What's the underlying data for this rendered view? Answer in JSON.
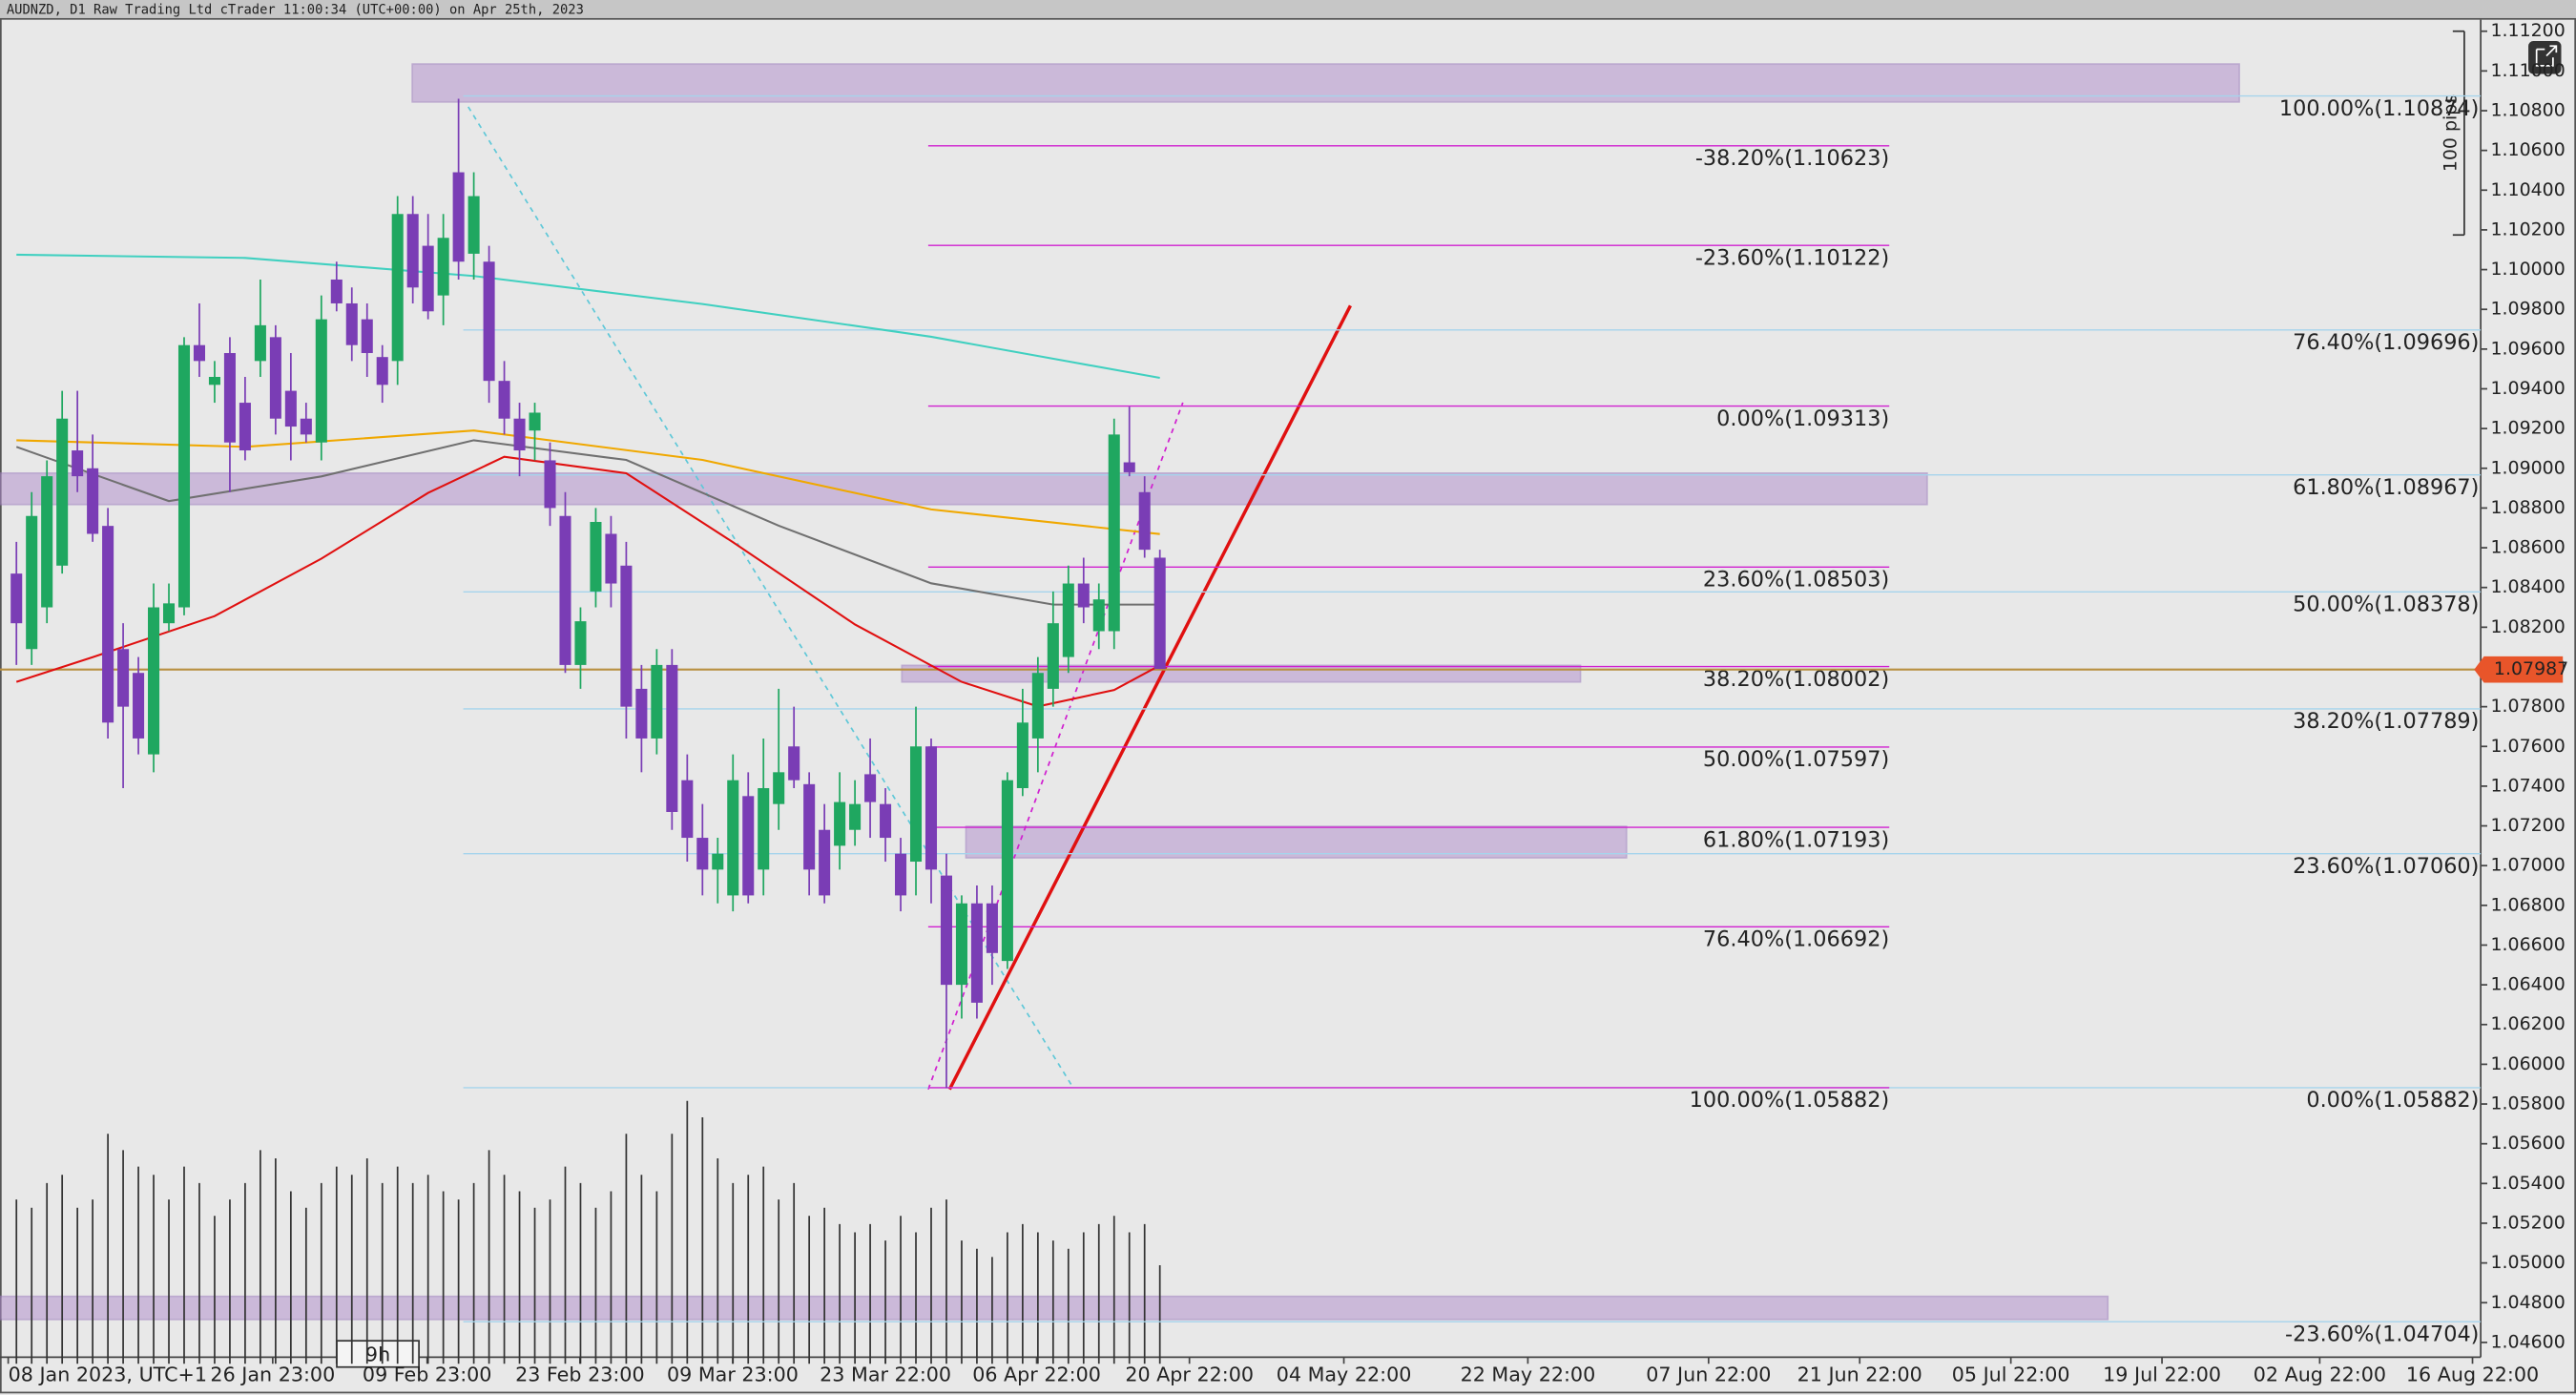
{
  "header": "AUDNZD, D1 Raw Trading Ltd cTrader 11:00:34 (UTC+00:00) on Apr 25th, 2023",
  "chart_data": {
    "type": "candlestick",
    "pips_label": "100 pips",
    "timer_label": "9h",
    "current_price": {
      "value": 1.07987,
      "label": "1.07987"
    },
    "x_labels": [
      "08 Jan 2023, UTC+1",
      "26 Jan 23:00",
      "09 Feb 23:00",
      "23 Feb 23:00",
      "09 Mar 23:00",
      "23 Mar 22:00",
      "06 Apr 22:00",
      "20 Apr 22:00",
      "04 May 22:00",
      "22 May 22:00",
      "07 Jun 22:00",
      "21 Jun 22:00",
      "05 Jul 22:00",
      "19 Jul 22:00",
      "02 Aug 22:00",
      "16 Aug 22:00"
    ],
    "ylim": [
      1.046,
      1.112
    ],
    "yticks": [
      {
        "value": 1.112,
        "label": "1.11200"
      },
      {
        "value": 1.11,
        "label": "1.11000"
      },
      {
        "value": 1.108,
        "label": "1.10800"
      },
      {
        "value": 1.106,
        "label": "1.10600"
      },
      {
        "value": 1.104,
        "label": "1.10400"
      },
      {
        "value": 1.102,
        "label": "1.10200"
      },
      {
        "value": 1.1,
        "label": "1.10000"
      },
      {
        "value": 1.098,
        "label": "1.09800"
      },
      {
        "value": 1.096,
        "label": "1.09600"
      },
      {
        "value": 1.094,
        "label": "1.09400"
      },
      {
        "value": 1.092,
        "label": "1.09200"
      },
      {
        "value": 1.09,
        "label": "1.09000"
      },
      {
        "value": 1.088,
        "label": "1.08800"
      },
      {
        "value": 1.086,
        "label": "1.08600"
      },
      {
        "value": 1.084,
        "label": "1.08400"
      },
      {
        "value": 1.082,
        "label": "1.08200"
      },
      {
        "value": 1.08,
        "label": "1.08000"
      },
      {
        "value": 1.078,
        "label": "1.07800"
      },
      {
        "value": 1.076,
        "label": "1.07600"
      },
      {
        "value": 1.074,
        "label": "1.07400"
      },
      {
        "value": 1.072,
        "label": "1.07200"
      },
      {
        "value": 1.07,
        "label": "1.07000"
      },
      {
        "value": 1.068,
        "label": "1.06800"
      },
      {
        "value": 1.066,
        "label": "1.06600"
      },
      {
        "value": 1.064,
        "label": "1.06400"
      },
      {
        "value": 1.062,
        "label": "1.06200"
      },
      {
        "value": 1.06,
        "label": "1.06000"
      },
      {
        "value": 1.058,
        "label": "1.05800"
      },
      {
        "value": 1.056,
        "label": "1.05600"
      },
      {
        "value": 1.054,
        "label": "1.05400"
      },
      {
        "value": 1.052,
        "label": "1.05200"
      },
      {
        "value": 1.05,
        "label": "1.05000"
      },
      {
        "value": 1.048,
        "label": "1.04800"
      },
      {
        "value": 1.046,
        "label": "1.04600"
      }
    ],
    "up_color": "#1fa760",
    "down_color": "#7a3db5",
    "candles": [
      [
        1.0847,
        1.0863,
        1.0801,
        1.0822
      ],
      [
        1.0809,
        1.0888,
        1.0801,
        1.0876
      ],
      [
        1.083,
        1.0904,
        1.0822,
        1.0896
      ],
      [
        1.0851,
        1.0939,
        1.0847,
        1.0925
      ],
      [
        1.0909,
        1.0939,
        1.0888,
        1.0896
      ],
      [
        1.09,
        1.0917,
        1.0863,
        1.0867
      ],
      [
        1.0871,
        1.088,
        1.0764,
        1.0772
      ],
      [
        1.0809,
        1.0822,
        1.0739,
        1.078
      ],
      [
        1.0797,
        1.0805,
        1.0756,
        1.0764
      ],
      [
        1.0756,
        1.0842,
        1.0747,
        1.083
      ],
      [
        1.0822,
        1.0842,
        1.0818,
        1.0832
      ],
      [
        1.083,
        1.0966,
        1.0826,
        1.0962
      ],
      [
        1.0962,
        1.0983,
        1.0946,
        1.0954
      ],
      [
        1.0942,
        1.0954,
        1.0933,
        1.0946
      ],
      [
        1.0958,
        1.0966,
        1.0888,
        1.0913
      ],
      [
        1.0933,
        1.0946,
        1.0904,
        1.0909
      ],
      [
        1.0954,
        1.0995,
        1.0946,
        1.0972
      ],
      [
        1.0966,
        1.0972,
        1.0917,
        1.0925
      ],
      [
        1.0939,
        1.0958,
        1.0904,
        1.0921
      ],
      [
        1.0925,
        1.0933,
        1.0913,
        1.0917
      ],
      [
        1.0913,
        1.0987,
        1.0904,
        1.0975
      ],
      [
        1.0995,
        1.1004,
        1.0979,
        1.0983
      ],
      [
        1.0983,
        1.0991,
        1.0954,
        1.0962
      ],
      [
        1.0975,
        1.0983,
        1.0946,
        1.0958
      ],
      [
        1.0956,
        1.0962,
        1.0933,
        1.0942
      ],
      [
        1.0954,
        1.1037,
        1.0942,
        1.1028
      ],
      [
        1.1028,
        1.1037,
        1.0983,
        1.0991
      ],
      [
        1.1012,
        1.1028,
        1.0975,
        1.0979
      ],
      [
        1.0987,
        1.1028,
        1.0972,
        1.1016
      ],
      [
        1.1049,
        1.1086,
        1.0995,
        1.1004
      ],
      [
        1.1008,
        1.1049,
        1.0995,
        1.1037
      ],
      [
        1.1004,
        1.1012,
        1.0933,
        1.0944
      ],
      [
        1.0944,
        1.0954,
        1.0917,
        1.0925
      ],
      [
        1.0925,
        1.0933,
        1.0896,
        1.0909
      ],
      [
        1.0919,
        1.0933,
        1.0904,
        1.0928
      ],
      [
        1.0904,
        1.0913,
        1.0871,
        1.088
      ],
      [
        1.0876,
        1.0888,
        1.0797,
        1.0801
      ],
      [
        1.0801,
        1.083,
        1.0789,
        1.0823
      ],
      [
        1.0838,
        1.088,
        1.083,
        1.0873
      ],
      [
        1.0867,
        1.0876,
        1.083,
        1.0842
      ],
      [
        1.0851,
        1.0863,
        1.0764,
        1.078
      ],
      [
        1.0789,
        1.0801,
        1.0747,
        1.0764
      ],
      [
        1.0764,
        1.0809,
        1.0756,
        1.0801
      ],
      [
        1.0801,
        1.0809,
        1.0718,
        1.0727
      ],
      [
        1.0743,
        1.0756,
        1.0702,
        1.0714
      ],
      [
        1.0714,
        1.0731,
        1.0685,
        1.0698
      ],
      [
        1.0698,
        1.0714,
        1.0681,
        1.0706
      ],
      [
        1.0685,
        1.0756,
        1.0677,
        1.0743
      ],
      [
        1.0735,
        1.0747,
        1.0681,
        1.0685
      ],
      [
        1.0698,
        1.0764,
        1.0685,
        1.0739
      ],
      [
        1.0731,
        1.0789,
        1.0718,
        1.0747
      ],
      [
        1.076,
        1.078,
        1.0739,
        1.0743
      ],
      [
        1.0741,
        1.0747,
        1.0685,
        1.0698
      ],
      [
        1.0718,
        1.0731,
        1.0681,
        1.0685
      ],
      [
        1.071,
        1.0747,
        1.0698,
        1.0732
      ],
      [
        1.0718,
        1.0743,
        1.071,
        1.0731
      ],
      [
        1.0746,
        1.0764,
        1.0714,
        1.0732
      ],
      [
        1.0731,
        1.0739,
        1.0702,
        1.0714
      ],
      [
        1.0706,
        1.0714,
        1.0677,
        1.0685
      ],
      [
        1.0702,
        1.078,
        1.0685,
        1.076
      ],
      [
        1.076,
        1.0764,
        1.0681,
        1.0698
      ],
      [
        1.0695,
        1.0706,
        1.0588,
        1.064
      ],
      [
        1.064,
        1.0685,
        1.0623,
        1.0681
      ],
      [
        1.0681,
        1.069,
        1.0623,
        1.0631
      ],
      [
        1.0681,
        1.069,
        1.064,
        1.0656
      ],
      [
        1.0652,
        1.0747,
        1.0648,
        1.0743
      ],
      [
        1.0739,
        1.0789,
        1.0735,
        1.0772
      ],
      [
        1.0764,
        1.0805,
        1.0747,
        1.0797
      ],
      [
        1.0789,
        1.0838,
        1.078,
        1.0822
      ],
      [
        1.0805,
        1.0851,
        1.0797,
        1.0842
      ],
      [
        1.0842,
        1.0855,
        1.0822,
        1.083
      ],
      [
        1.0818,
        1.0842,
        1.0809,
        1.0834
      ],
      [
        1.0818,
        1.0925,
        1.0809,
        1.0917
      ],
      [
        1.0903,
        1.0931,
        1.0896,
        1.0898
      ],
      [
        1.0888,
        1.0896,
        1.0855,
        1.0859
      ],
      [
        1.0855,
        1.0859,
        1.0799,
        1.0799
      ]
    ],
    "volume": [
      100,
      95,
      110,
      115,
      95,
      100,
      140,
      130,
      120,
      115,
      100,
      120,
      110,
      90,
      100,
      110,
      130,
      125,
      105,
      95,
      110,
      120,
      115,
      125,
      110,
      120,
      110,
      115,
      105,
      100,
      110,
      130,
      115,
      105,
      95,
      100,
      120,
      110,
      95,
      105,
      140,
      115,
      105,
      140,
      160,
      150,
      125,
      110,
      115,
      120,
      100,
      110,
      90,
      95,
      85,
      80,
      85,
      75,
      90,
      80,
      95,
      100,
      75,
      70,
      65,
      80,
      85,
      80,
      75,
      70,
      80,
      85,
      90,
      80,
      85,
      60
    ],
    "series": [
      {
        "color": "#40d0c0",
        "x": [
          0,
          15,
          30,
          45,
          60,
          75
        ],
        "values": [
          1.10075,
          1.10059,
          1.09968,
          1.09827,
          1.09662,
          1.09455
        ]
      },
      {
        "color": "#f0a800",
        "x": [
          0,
          15,
          30,
          45,
          60,
          75
        ],
        "values": [
          1.09141,
          1.09108,
          1.0919,
          1.09042,
          1.08793,
          1.08669
        ]
      },
      {
        "color": "#707070",
        "x": [
          0,
          10,
          20,
          30,
          40,
          50,
          60,
          68,
          75
        ],
        "values": [
          1.09108,
          1.08835,
          1.08959,
          1.09141,
          1.09042,
          1.08711,
          1.08421,
          1.08314,
          1.08314
        ]
      },
      {
        "color": "#e01010",
        "x": [
          0,
          5,
          13,
          20,
          27,
          32,
          40,
          47,
          55,
          62,
          67,
          72,
          75
        ],
        "values": [
          1.07925,
          1.08049,
          1.08256,
          1.08545,
          1.08876,
          1.09058,
          1.08975,
          1.08628,
          1.08214,
          1.07925,
          1.07801,
          1.07884,
          1.08008
        ]
      }
    ],
    "fib_magenta": [
      {
        "label": "-38.20%(1.10623)",
        "price": 1.10623
      },
      {
        "label": "-23.60%(1.10122)",
        "price": 1.10122
      },
      {
        "label": "0.00%(1.09313)",
        "price": 1.09313
      },
      {
        "label": "23.60%(1.08503)",
        "price": 1.08503
      },
      {
        "label": "38.20%(1.08002)",
        "price": 1.08002
      },
      {
        "label": "50.00%(1.07597)",
        "price": 1.07597
      },
      {
        "label": "61.80%(1.07193)",
        "price": 1.07193
      },
      {
        "label": "76.40%(1.06692)",
        "price": 1.06692
      },
      {
        "label": "100.00%(1.05882)",
        "price": 1.05882
      }
    ],
    "fib_blue": [
      {
        "label": "100.00%(1.10874)",
        "price": 1.10874
      },
      {
        "label": "76.40%(1.09696)",
        "price": 1.09696
      },
      {
        "label": "61.80%(1.08967)",
        "price": 1.08967
      },
      {
        "label": "50.00%(1.08378)",
        "price": 1.08378
      },
      {
        "label": "38.20%(1.07789)",
        "price": 1.07789
      },
      {
        "label": "23.60%(1.07060)",
        "price": 1.0706
      },
      {
        "label": "0.00%(1.05882)",
        "price": 1.05882
      },
      {
        "label": "-23.60%(1.04704)",
        "price": 1.04704
      }
    ]
  }
}
